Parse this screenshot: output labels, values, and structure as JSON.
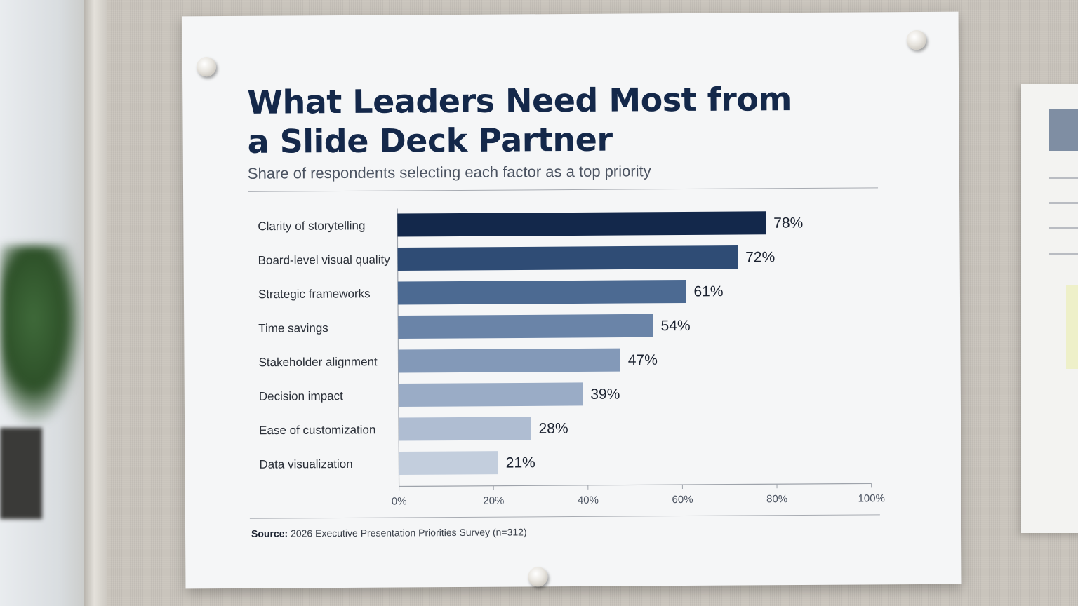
{
  "colors": {
    "bars": [
      "#13284b",
      "#2f4c75",
      "#4c6a92",
      "#6a84a8",
      "#8399b8",
      "#9aacc6",
      "#afbdd2",
      "#c3cedd"
    ],
    "title": "#14284a",
    "axis": "#9ea3ab"
  },
  "source": {
    "label": "Source:",
    "text": "2026 Executive Presentation Priorities Survey (n=312)"
  },
  "chart_data": {
    "type": "bar",
    "orientation": "horizontal",
    "title": "What Leaders Need Most from a Slide Deck Partner",
    "subtitle": "Share of respondents selecting each factor as a top priority",
    "categories": [
      "Clarity of storytelling",
      "Board-level visual quality",
      "Strategic frameworks",
      "Time savings",
      "Stakeholder alignment",
      "Decision impact",
      "Ease of customization",
      "Data visualization"
    ],
    "values": [
      78,
      72,
      61,
      54,
      47,
      39,
      28,
      21
    ],
    "value_labels": [
      "78%",
      "72%",
      "61%",
      "54%",
      "47%",
      "39%",
      "28%",
      "21%"
    ],
    "xlim": [
      0,
      100
    ],
    "x_ticks": [
      0,
      20,
      40,
      60,
      80,
      100
    ],
    "x_tick_labels": [
      "0%",
      "20%",
      "40%",
      "60%",
      "80%",
      "100%"
    ],
    "xlabel": "",
    "ylabel": "",
    "grid": false,
    "legend": "none"
  }
}
